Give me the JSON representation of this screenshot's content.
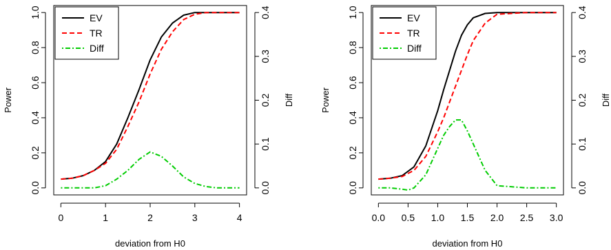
{
  "chart_data": [
    {
      "type": "line",
      "xlabel": "deviation from H0",
      "ylabel": "Power",
      "ylabel_right": "Diff",
      "xlim": [
        0,
        4
      ],
      "ylim": [
        0,
        1
      ],
      "ylim_right": [
        0,
        0.4
      ],
      "x_ticks": [
        0,
        1,
        2,
        3,
        4
      ],
      "x_tick_labels": [
        "0",
        "1",
        "2",
        "3",
        "4"
      ],
      "y_ticks": [
        0,
        0.2,
        0.4,
        0.6,
        0.8,
        1.0
      ],
      "y_tick_labels": [
        "0.0",
        "0.2",
        "0.4",
        "0.6",
        "0.8",
        "1.0"
      ],
      "y_right_ticks": [
        0,
        0.1,
        0.2,
        0.3,
        0.4
      ],
      "y_right_tick_labels": [
        "0.0",
        "0.1",
        "0.2",
        "0.3",
        "0.4"
      ],
      "grid": false,
      "legend": "top-left",
      "series": [
        {
          "name": "EV",
          "color": "#000000",
          "dash": "solid",
          "axis": "left",
          "x": [
            0,
            0.25,
            0.5,
            0.75,
            1.0,
            1.25,
            1.5,
            1.75,
            2.0,
            2.25,
            2.5,
            2.75,
            3.0,
            3.25,
            3.5,
            3.75,
            4.0
          ],
          "values": [
            0.05,
            0.055,
            0.07,
            0.1,
            0.15,
            0.25,
            0.4,
            0.56,
            0.73,
            0.86,
            0.94,
            0.985,
            1.0,
            1.0,
            1.0,
            1.0,
            1.0
          ]
        },
        {
          "name": "TR",
          "color": "#ff0000",
          "dash": "dashed",
          "axis": "left",
          "x": [
            0,
            0.25,
            0.5,
            0.75,
            1.0,
            1.25,
            1.5,
            1.75,
            2.0,
            2.25,
            2.5,
            2.75,
            3.0,
            3.25,
            3.5,
            3.75,
            4.0
          ],
          "values": [
            0.05,
            0.055,
            0.07,
            0.1,
            0.14,
            0.22,
            0.35,
            0.49,
            0.65,
            0.79,
            0.89,
            0.96,
            0.99,
            1.0,
            1.0,
            1.0,
            1.0
          ]
        },
        {
          "name": "Diff",
          "color": "#00cc00",
          "dash": "dotdash",
          "axis": "right",
          "x": [
            0,
            0.25,
            0.5,
            0.75,
            1.0,
            1.25,
            1.5,
            1.75,
            2.0,
            2.25,
            2.5,
            2.75,
            3.0,
            3.25,
            3.5,
            3.75,
            4.0
          ],
          "values": [
            0.0,
            0.0,
            0.0,
            0.0,
            0.005,
            0.02,
            0.04,
            0.065,
            0.082,
            0.072,
            0.05,
            0.025,
            0.01,
            0.003,
            0.0,
            0.0,
            0.0
          ]
        }
      ]
    },
    {
      "type": "line",
      "xlabel": "deviation from H0",
      "ylabel": "Power",
      "ylabel_right": "Diff",
      "xlim": [
        0,
        3
      ],
      "ylim": [
        0,
        1
      ],
      "ylim_right": [
        0,
        0.4
      ],
      "x_ticks": [
        0,
        0.5,
        1.0,
        1.5,
        2.0,
        2.5,
        3.0
      ],
      "x_tick_labels": [
        "0.0",
        "0.5",
        "1.0",
        "1.5",
        "2.0",
        "2.5",
        "3.0"
      ],
      "y_ticks": [
        0,
        0.2,
        0.4,
        0.6,
        0.8,
        1.0
      ],
      "y_tick_labels": [
        "0.0",
        "0.2",
        "0.4",
        "0.6",
        "0.8",
        "1.0"
      ],
      "y_right_ticks": [
        0,
        0.1,
        0.2,
        0.3,
        0.4
      ],
      "y_right_tick_labels": [
        "0.0",
        "0.1",
        "0.2",
        "0.3",
        "0.4"
      ],
      "grid": false,
      "legend": "top-left",
      "series": [
        {
          "name": "EV",
          "color": "#000000",
          "dash": "solid",
          "axis": "left",
          "x": [
            0,
            0.2,
            0.4,
            0.6,
            0.8,
            1.0,
            1.1,
            1.2,
            1.3,
            1.4,
            1.5,
            1.6,
            1.8,
            2.0,
            2.5,
            3.0
          ],
          "values": [
            0.05,
            0.055,
            0.07,
            0.12,
            0.24,
            0.44,
            0.56,
            0.67,
            0.78,
            0.87,
            0.93,
            0.97,
            0.995,
            1.0,
            1.0,
            1.0
          ]
        },
        {
          "name": "TR",
          "color": "#ff0000",
          "dash": "dashed",
          "axis": "left",
          "x": [
            0,
            0.2,
            0.4,
            0.6,
            0.8,
            1.0,
            1.1,
            1.2,
            1.3,
            1.4,
            1.5,
            1.6,
            1.8,
            2.0,
            2.5,
            3.0
          ],
          "values": [
            0.05,
            0.055,
            0.065,
            0.1,
            0.18,
            0.32,
            0.4,
            0.49,
            0.58,
            0.67,
            0.76,
            0.84,
            0.94,
            0.99,
            1.0,
            1.0
          ]
        },
        {
          "name": "Diff",
          "color": "#00cc00",
          "dash": "dotdash",
          "axis": "right",
          "x": [
            0,
            0.2,
            0.4,
            0.5,
            0.6,
            0.8,
            1.0,
            1.1,
            1.2,
            1.3,
            1.4,
            1.5,
            1.6,
            1.8,
            2.0,
            2.5,
            3.0
          ],
          "values": [
            0.0,
            0.0,
            -0.003,
            -0.005,
            0.0,
            0.03,
            0.09,
            0.12,
            0.14,
            0.155,
            0.155,
            0.13,
            0.1,
            0.04,
            0.005,
            0.0,
            0.0
          ]
        }
      ]
    }
  ]
}
